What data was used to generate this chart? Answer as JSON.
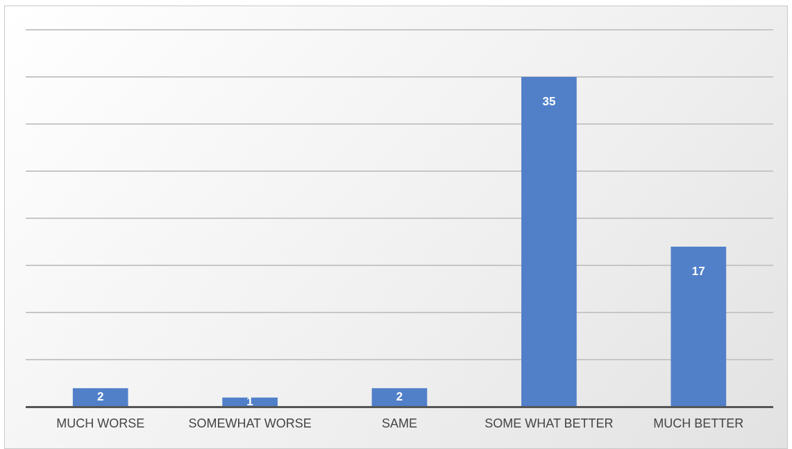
{
  "chart_data": {
    "type": "bar",
    "categories": [
      "MUCH WORSE",
      "SOMEWHAT WORSE",
      "SAME",
      "SOME WHAT BETTER",
      "MUCH BETTER"
    ],
    "values": [
      2,
      1,
      2,
      35,
      17
    ],
    "color": "#5180c9",
    "grid": "y",
    "tick_labels": "x",
    "data_labels": true,
    "legend": false
  }
}
